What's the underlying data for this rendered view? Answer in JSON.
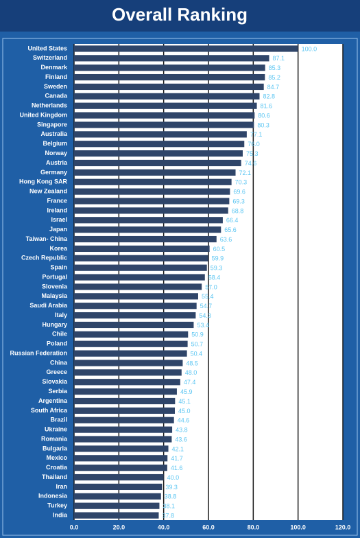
{
  "chart_data": {
    "type": "barh",
    "title": "Overall Ranking",
    "categories": [
      "United States",
      "Switzerland",
      "Denmark",
      "Finland",
      "Sweden",
      "Canada",
      "Netherlands",
      "United Kingdom",
      "Singapore",
      "Australia",
      "Belgium",
      "Norway",
      "Austria",
      "Germany",
      "Hong Kong SAR",
      "New Zealand",
      "France",
      "Ireland",
      "Israel",
      "Japan",
      "Taiwan- China",
      "Korea",
      "Czech Republic",
      "Spain",
      "Portugal",
      "Slovenia",
      "Malaysia",
      "Saudi Arabia",
      "Italy",
      "Hungary",
      "Chile",
      "Poland",
      "Russian Federation",
      "China",
      "Greece",
      "Slovakia",
      "Serbia",
      "Argentina",
      "South Africa",
      "Brazil",
      "Ukraine",
      "Romania",
      "Bulgaria",
      "Mexico",
      "Croatia",
      "Thailand",
      "Iran",
      "Indonesia",
      "Turkey",
      "India"
    ],
    "values": [
      100.0,
      87.1,
      85.3,
      85.2,
      84.7,
      82.8,
      81.6,
      80.6,
      80.3,
      77.1,
      76.0,
      75.3,
      74.6,
      72.1,
      70.3,
      69.6,
      69.3,
      68.8,
      66.4,
      65.6,
      63.6,
      60.5,
      59.9,
      59.3,
      58.4,
      57.0,
      55.4,
      54.7,
      54.3,
      53.4,
      50.9,
      50.7,
      50.4,
      48.5,
      48.0,
      47.4,
      45.9,
      45.1,
      45.0,
      44.6,
      43.8,
      43.6,
      42.1,
      41.7,
      41.6,
      40.0,
      39.3,
      38.8,
      38.1,
      37.8
    ],
    "value_labels": [
      "100.0",
      "87.1",
      "85.3",
      "85.2",
      "84.7",
      "82.8",
      "81.6",
      "80.6",
      "80.3",
      "77.1",
      "76.0",
      "75.3",
      "74.6",
      "72.1",
      "70.3",
      "69.6",
      "69.3",
      "68.8",
      "66.4",
      "65.6",
      "63.6",
      "60.5",
      "59.9",
      "59.3",
      "58.4",
      "57.0",
      "55.4",
      "54.7",
      "54.3",
      "53.4",
      "50.9",
      "50.7",
      "50.4",
      "48.5",
      "48.0",
      "47.4",
      "45.9",
      "45.1",
      "45.0",
      "44.6",
      "43.8",
      "43.6",
      "42.1",
      "41.7",
      "41.6",
      "40.0",
      "39.3",
      "38.8",
      "38.1",
      "37.8"
    ],
    "color": "#2f4569",
    "xlim": [
      0,
      120
    ],
    "xticks": [
      {
        "value": 0,
        "label": "0.0"
      },
      {
        "value": 20,
        "label": "20.0"
      },
      {
        "value": 40,
        "label": "40.0"
      },
      {
        "value": 60,
        "label": "60.0"
      },
      {
        "value": 80,
        "label": "80.0"
      },
      {
        "value": 100,
        "label": "100.0"
      },
      {
        "value": 120,
        "label": "120.0"
      }
    ],
    "grid": true
  }
}
